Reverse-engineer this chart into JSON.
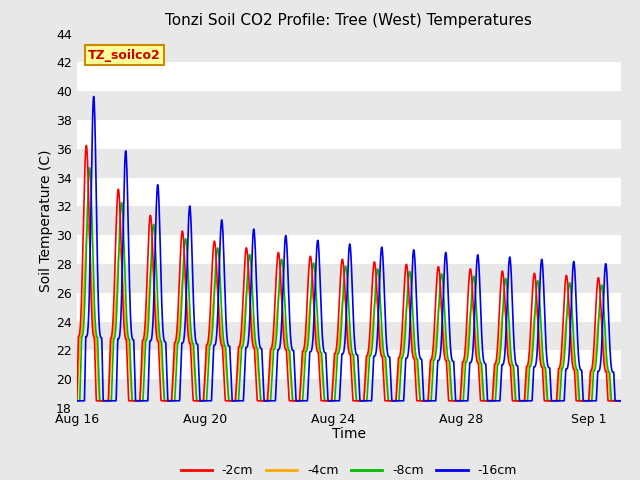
{
  "title": "Tonzi Soil CO2 Profile: Tree (West) Temperatures",
  "xlabel": "Time",
  "ylabel": "Soil Temperature (C)",
  "ylim": [
    18,
    44
  ],
  "xlim_days": [
    0,
    17.0
  ],
  "x_ticks_days": [
    0,
    4,
    8,
    12,
    16
  ],
  "x_tick_labels": [
    "Aug 16",
    "Aug 20",
    "Aug 24",
    "Aug 28",
    "Sep 1"
  ],
  "legend_labels": [
    "-2cm",
    "-4cm",
    "-8cm",
    "-16cm"
  ],
  "line_colors": [
    "#ff0000",
    "#ffaa00",
    "#00bb00",
    "#0000ee"
  ],
  "watermark_text": "TZ_soilco2",
  "watermark_bg": "#ffff99",
  "watermark_border": "#cc8800",
  "bg_gray": "#e8e8e8",
  "band_white": "#f0f0f0",
  "title_fontsize": 11,
  "axis_label_fontsize": 10,
  "tick_fontsize": 9
}
